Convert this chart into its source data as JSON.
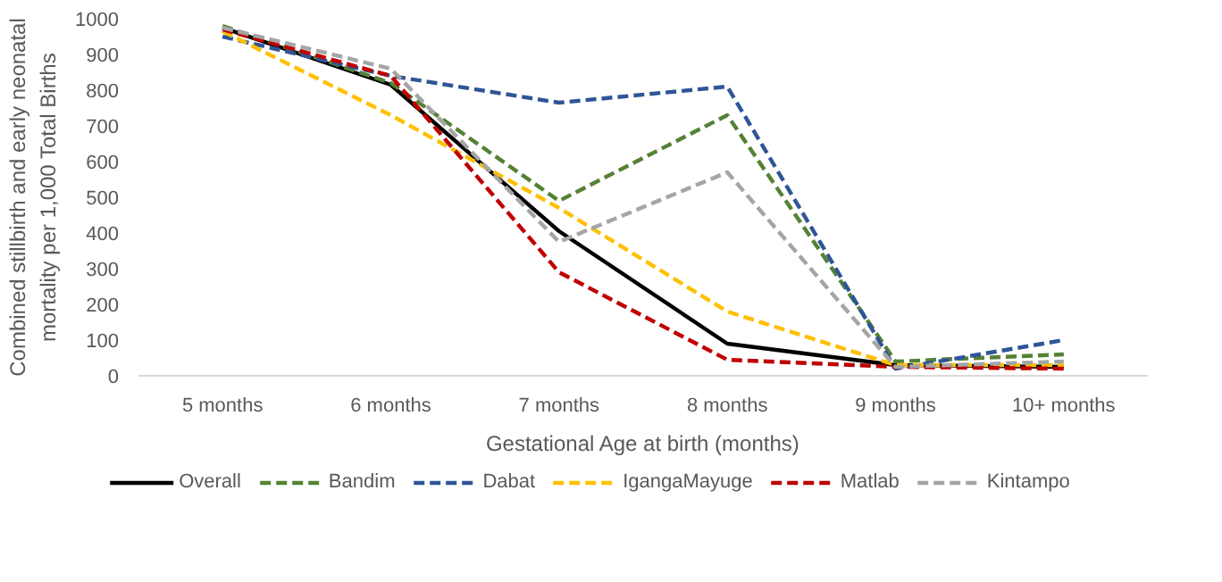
{
  "chart_data": {
    "type": "line",
    "xlabel": "Gestational Age at birth (months)",
    "ylabel": "Combined stillbirth and early neonatal\nmortality per 1,000 Total Births",
    "categories": [
      "5 months",
      "6 months",
      "7 months",
      "8 months",
      "9 months",
      "10+ months"
    ],
    "ylim": [
      0,
      1000
    ],
    "yticks": [
      0,
      100,
      200,
      300,
      400,
      500,
      600,
      700,
      800,
      900,
      1000
    ],
    "grid": false,
    "legend": "bottom",
    "marker": "none",
    "series": [
      {
        "name": "Overall",
        "color": "#000000",
        "line_style": "solid",
        "values": [
          975,
          815,
          405,
          90,
          30,
          25
        ]
      },
      {
        "name": "Bandim",
        "color": "#548235",
        "line_style": "dashed",
        "values": [
          980,
          820,
          490,
          730,
          40,
          60
        ]
      },
      {
        "name": "Dabat",
        "color": "#2f5597",
        "line_style": "dashed",
        "values": [
          950,
          840,
          765,
          810,
          20,
          100
        ]
      },
      {
        "name": "IgangaMayuge",
        "color": "#ffc000",
        "line_style": "dashed",
        "values": [
          965,
          730,
          470,
          180,
          30,
          30
        ]
      },
      {
        "name": "Matlab",
        "color": "#c00000",
        "line_style": "dashed",
        "values": [
          970,
          840,
          290,
          45,
          25,
          20
        ]
      },
      {
        "name": "Kintampo",
        "color": "#a5a5a5",
        "line_style": "dashed",
        "values": [
          975,
          860,
          375,
          570,
          25,
          40
        ]
      }
    ]
  }
}
